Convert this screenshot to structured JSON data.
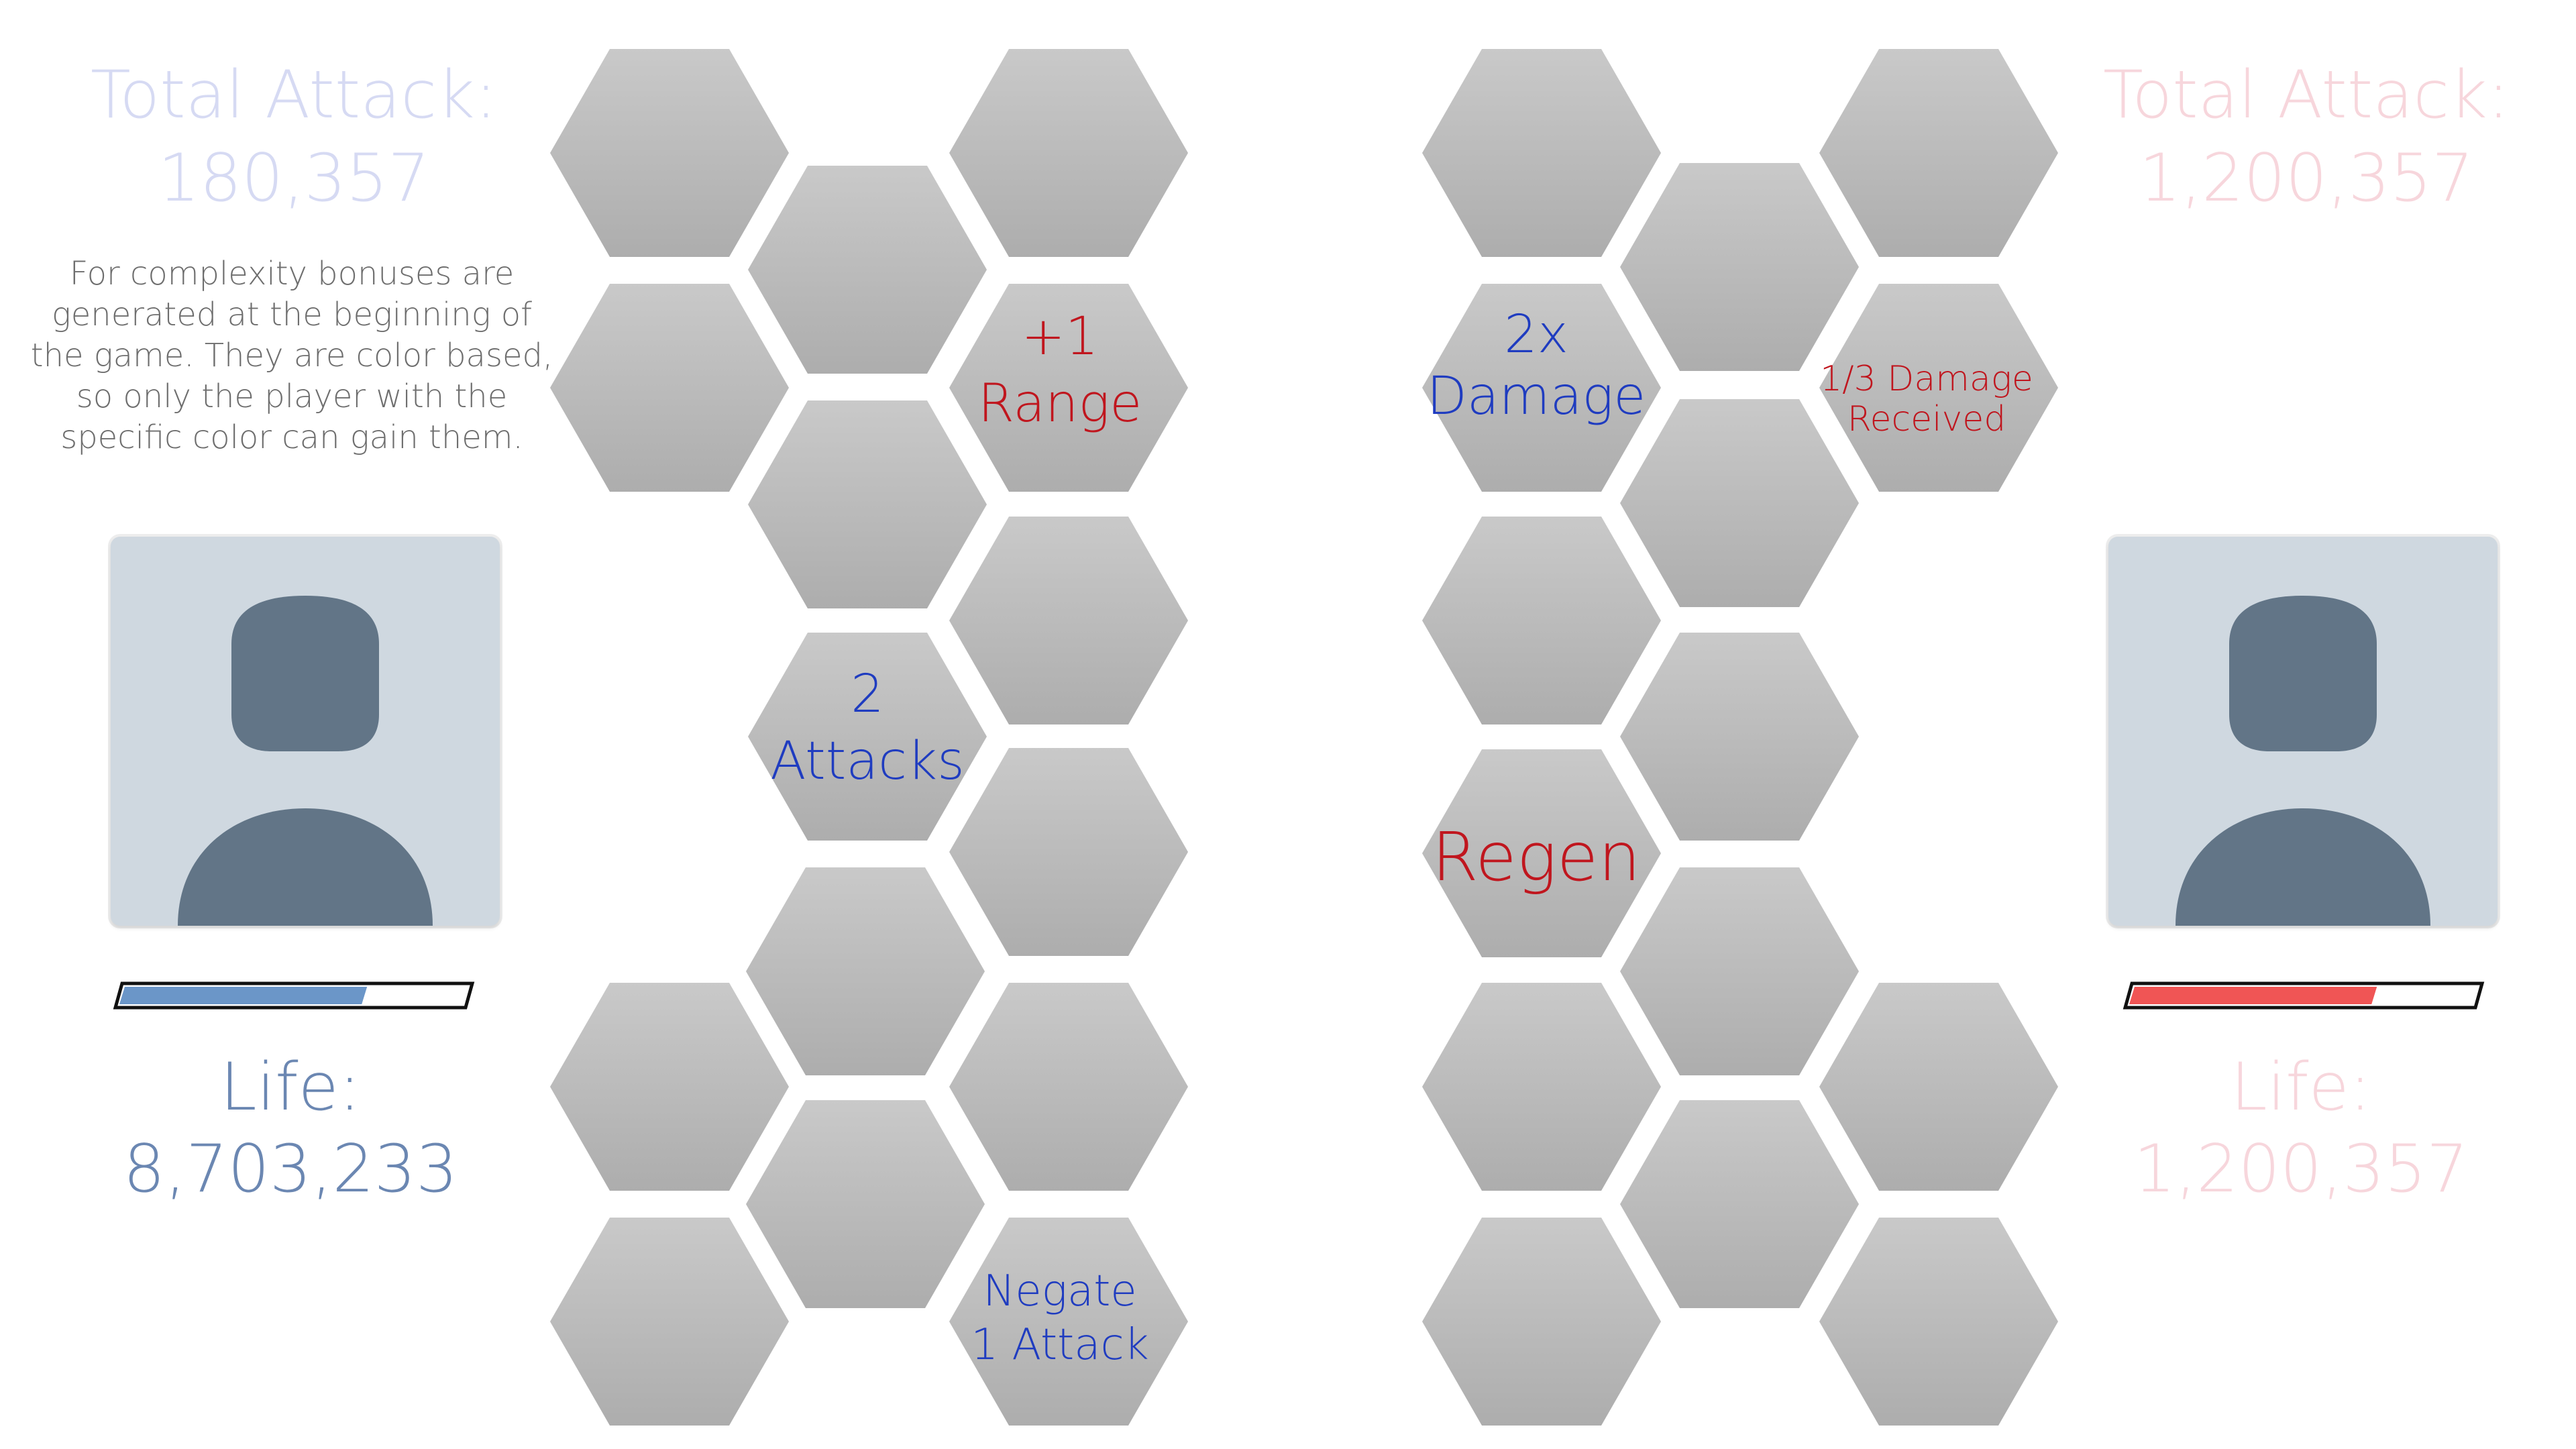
{
  "player1": {
    "total_attack_label": "Total Attack:",
    "total_attack_value": "180,357",
    "life_label": "Life:",
    "life_value": "8,703,233",
    "life_fraction": 0.7,
    "accent_color": "#6b96c8",
    "avatar_icon": "user-silhouette-icon"
  },
  "player2": {
    "total_attack_label": "Total Attack:",
    "total_attack_value": "1,200,357",
    "life_label": "Life:",
    "life_value": "1,200,357",
    "life_fraction": 0.7,
    "accent_color": "#f05555",
    "avatar_icon": "user-silhouette-icon"
  },
  "note": "For complexity bonuses are generated at the  beginning of the game. They are color based, so only the player with the specific color can gain them.",
  "bonuses": {
    "range": "+1\nRange",
    "attacks": "2\nAttacks",
    "negate": "Negate\n1 Attack",
    "damage": "2x\nDamage",
    "reduce": "1/3 Damage\nReceived",
    "regen": "Regen"
  },
  "colors": {
    "blue_bonus": "#1f3cc0",
    "red_bonus": "#c0161e",
    "hex_top": "#c8c8c8",
    "hex_bottom": "#aeaeae"
  }
}
